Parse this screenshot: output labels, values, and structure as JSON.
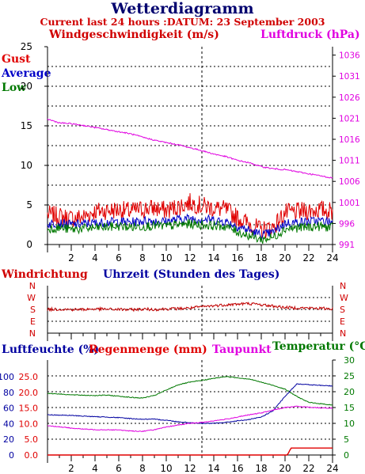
{
  "title": "Wetterdiagramm",
  "subtitle": "Current last 24 hours :DATUM: 23 September 2003",
  "colors": {
    "gust": "#e00000",
    "average": "#0000c8",
    "low": "#007800",
    "pressure": "#e000e0",
    "direction": "#c00000",
    "humidity": "#0000a0",
    "rain": "#e00000",
    "dewpoint": "#e000e0",
    "temperature": "#007800",
    "dewpoint_label": "#e000e0",
    "temperature_label": "#007800"
  },
  "chart_data": [
    {
      "type": "line",
      "id": "wind",
      "left_axis_label": "Windgeschwindigkeit (m/s)",
      "right_axis_label": "Luftdruck (hPa)",
      "left_ticks": [
        "0",
        "5",
        "10",
        "15",
        "20",
        "25"
      ],
      "right_ticks": [
        "991",
        "996",
        "1001",
        "1006",
        "1011",
        "1016",
        "1021",
        "1026",
        "1031",
        "1036"
      ],
      "ylim": [
        0,
        25
      ],
      "ylim_right": [
        991,
        1038
      ],
      "xlim": [
        0,
        24
      ],
      "series": [
        {
          "name": "Gust",
          "axis": "left",
          "x": [
            0,
            1,
            2,
            3,
            4,
            5,
            6,
            7,
            8,
            9,
            10,
            11,
            12,
            13,
            14,
            15,
            16,
            17,
            18,
            19,
            20,
            21,
            22,
            23,
            24
          ],
          "values": [
            3.8,
            3.6,
            3.3,
            3.5,
            4.2,
            4.3,
            4.4,
            4.2,
            4.5,
            4.6,
            4.3,
            4.8,
            5.3,
            4.9,
            4.6,
            4.4,
            3.4,
            2.6,
            1.8,
            2.2,
            4.0,
            4.1,
            4.3,
            4.4,
            4.2
          ]
        },
        {
          "name": "Average",
          "axis": "left",
          "x": [
            0,
            1,
            2,
            3,
            4,
            5,
            6,
            7,
            8,
            9,
            10,
            11,
            12,
            13,
            14,
            15,
            16,
            17,
            18,
            19,
            20,
            21,
            22,
            23,
            24
          ],
          "values": [
            2.6,
            2.7,
            2.5,
            2.6,
            2.7,
            2.8,
            2.9,
            2.8,
            3.0,
            3.0,
            2.9,
            3.2,
            3.3,
            3.2,
            3.1,
            2.9,
            2.3,
            1.8,
            1.2,
            1.5,
            2.7,
            2.8,
            2.9,
            3.0,
            2.8
          ]
        },
        {
          "name": "Low",
          "axis": "left",
          "x": [
            0,
            1,
            2,
            3,
            4,
            5,
            6,
            7,
            8,
            9,
            10,
            11,
            12,
            13,
            14,
            15,
            16,
            17,
            18,
            19,
            20,
            21,
            22,
            23,
            24
          ],
          "values": [
            2.0,
            2.1,
            1.9,
            2.0,
            2.1,
            2.2,
            2.3,
            2.2,
            2.3,
            2.4,
            2.3,
            2.5,
            2.6,
            2.5,
            2.4,
            2.3,
            1.6,
            1.1,
            0.6,
            0.9,
            2.0,
            2.1,
            2.2,
            2.3,
            2.1
          ]
        },
        {
          "name": "Luftdruck",
          "axis": "right",
          "x": [
            0,
            1,
            2,
            3,
            4,
            5,
            6,
            7,
            8,
            9,
            10,
            11,
            12,
            13,
            14,
            15,
            16,
            17,
            18,
            19,
            20,
            21,
            22,
            23,
            24
          ],
          "values": [
            1020.8,
            1019.9,
            1019.7,
            1019.3,
            1018.8,
            1018.3,
            1017.8,
            1017.3,
            1016.5,
            1015.8,
            1015.2,
            1014.7,
            1014.0,
            1013.3,
            1012.5,
            1011.9,
            1011.0,
            1010.4,
            1009.5,
            1009.0,
            1008.8,
            1008.3,
            1007.8,
            1007.3,
            1006.8
          ]
        }
      ],
      "legend": [
        "Gust",
        "Average",
        "Low"
      ]
    },
    {
      "type": "line",
      "id": "direction",
      "left_axis_label": "Windrichtung",
      "xlabel": "Uhrzeit (Stunden des Tages)",
      "x_ticks": [
        "2",
        "4",
        "6",
        "8",
        "10",
        "12",
        "14",
        "16",
        "18",
        "20",
        "22",
        "24"
      ],
      "dir_ticks": [
        "N",
        "E",
        "S",
        "W",
        "N"
      ],
      "ylim": [
        0,
        360
      ],
      "xlim": [
        0,
        24
      ],
      "series": [
        {
          "name": "Windrichtung",
          "x": [
            0,
            1,
            2,
            3,
            4,
            5,
            6,
            7,
            8,
            9,
            10,
            11,
            12,
            13,
            14,
            15,
            16,
            17,
            18,
            19,
            20,
            21,
            22,
            23,
            24
          ],
          "values": [
            180,
            182,
            179,
            180,
            183,
            181,
            180,
            178,
            182,
            180,
            184,
            186,
            190,
            200,
            208,
            215,
            220,
            225,
            215,
            205,
            195,
            192,
            190,
            188,
            185
          ]
        }
      ]
    },
    {
      "type": "line",
      "id": "humidity",
      "left_axis_label": "Luftfeuchte (%)",
      "mid_axis_label": "Regenmenge (mm)",
      "dewpoint_label": "Taupunkt",
      "right_axis_label": "Temperatur (°C)",
      "x_ticks": [
        "2",
        "4",
        "6",
        "8",
        "10",
        "12",
        "14",
        "16",
        "18",
        "20",
        "22",
        "24"
      ],
      "humidity_ticks": [
        "0",
        "20",
        "40",
        "60",
        "80",
        "100"
      ],
      "rain_ticks": [
        "0.0",
        "5.0",
        "10.0",
        "15.0",
        "20.0",
        "25.0"
      ],
      "temp_ticks": [
        "0",
        "5",
        "10",
        "15",
        "20",
        "25",
        "30"
      ],
      "xlim": [
        0,
        24
      ],
      "ylim_right": [
        0,
        30
      ],
      "series": [
        {
          "name": "Temperatur",
          "axis": "right",
          "x": [
            0,
            1,
            2,
            3,
            4,
            5,
            6,
            7,
            8,
            9,
            10,
            11,
            12,
            13,
            14,
            15,
            16,
            17,
            18,
            19,
            20,
            21,
            22,
            23,
            24
          ],
          "values": [
            19.5,
            19.3,
            19.0,
            18.9,
            18.8,
            18.9,
            18.6,
            18.2,
            18.0,
            18.8,
            20.5,
            22.2,
            23.0,
            23.6,
            24.2,
            24.8,
            24.4,
            24.0,
            23.0,
            22.0,
            20.8,
            18.5,
            16.6,
            16.2,
            15.8
          ]
        },
        {
          "name": "Luftfeuchte",
          "axis": "right",
          "x": [
            0,
            1,
            2,
            3,
            4,
            5,
            6,
            7,
            8,
            9,
            10,
            11,
            12,
            13,
            14,
            15,
            16,
            17,
            18,
            19,
            20,
            21,
            22,
            23,
            24
          ],
          "values": [
            12.7,
            12.6,
            12.5,
            12.3,
            12.1,
            12.0,
            11.8,
            11.5,
            11.3,
            11.3,
            11.0,
            10.5,
            10.2,
            10.0,
            10.0,
            10.3,
            10.8,
            11.2,
            12.0,
            14.0,
            18.5,
            22.5,
            22.2,
            22.0,
            21.8
          ]
        },
        {
          "name": "Taupunkt",
          "axis": "right",
          "x": [
            0,
            1,
            2,
            3,
            4,
            5,
            6,
            7,
            8,
            9,
            10,
            11,
            12,
            13,
            14,
            15,
            16,
            17,
            18,
            19,
            20,
            21,
            22,
            23,
            24
          ],
          "values": [
            9.3,
            8.9,
            8.5,
            8.2,
            8.0,
            8.0,
            7.9,
            7.6,
            7.5,
            8.0,
            8.8,
            9.5,
            10.0,
            10.3,
            10.8,
            11.3,
            12.0,
            12.7,
            13.3,
            14.2,
            15.0,
            15.4,
            15.1,
            14.9,
            14.8
          ]
        },
        {
          "name": "Regenmenge",
          "axis": "right",
          "x": [
            0,
            20.2,
            20.5,
            24
          ],
          "values": [
            0,
            0,
            2.2,
            2.2
          ]
        }
      ]
    }
  ]
}
